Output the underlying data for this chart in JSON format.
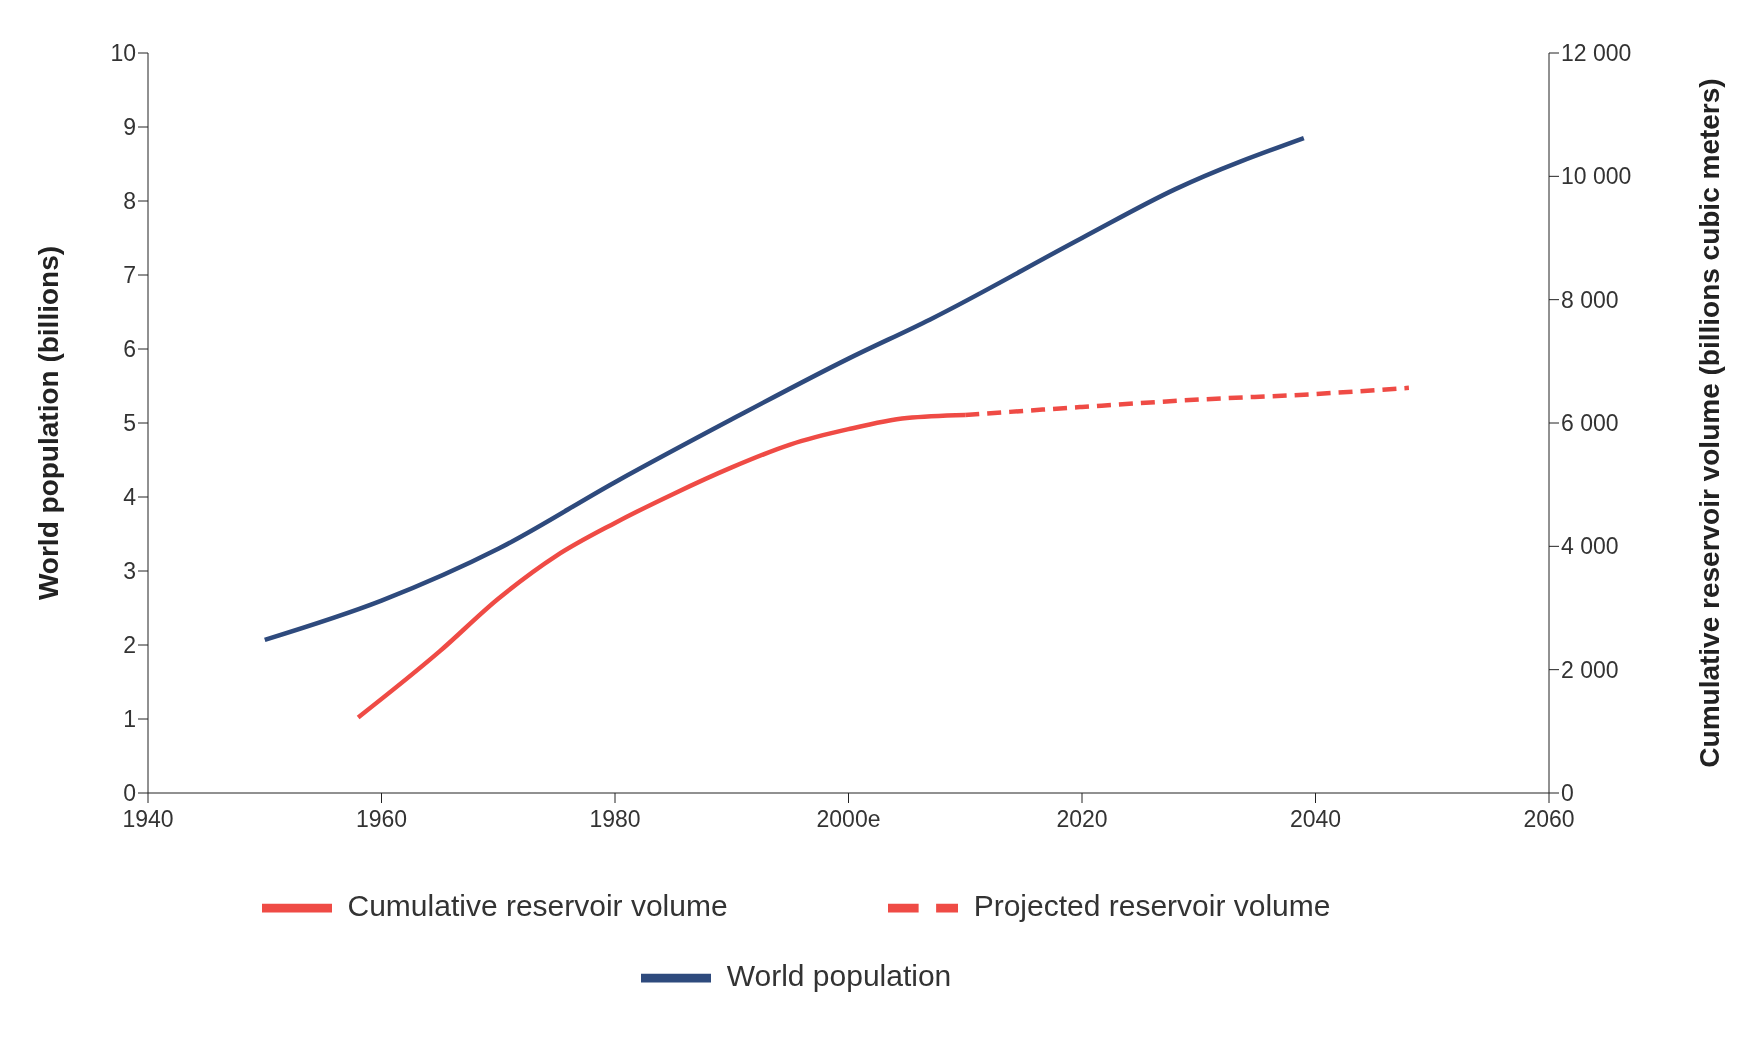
{
  "chart_data": {
    "type": "line",
    "ylabel": "World population (billions)",
    "y2label": "Cumulative reservoir volume (billions cubic meters)",
    "xlim": [
      1940,
      2060
    ],
    "xticks": [
      1940,
      1960,
      1980,
      {
        "value": 2000,
        "label": "2000e"
      },
      2020,
      2040,
      2060
    ],
    "ylim": [
      0,
      10
    ],
    "yticks": [
      0,
      1,
      2,
      3,
      4,
      5,
      6,
      7,
      8,
      9,
      10
    ],
    "y2lim": [
      0,
      12000
    ],
    "y2ticks": [
      0,
      {
        "value": 2000,
        "label": "2 000"
      },
      {
        "value": 4000,
        "label": "4 000"
      },
      {
        "value": 6000,
        "label": "6 000"
      },
      {
        "value": 8000,
        "label": "8 000"
      },
      {
        "value": 10000,
        "label": "10 000"
      },
      {
        "value": 12000,
        "label": "12 000"
      }
    ],
    "legend": "bottom",
    "grid": false,
    "series": [
      {
        "name": "World population",
        "color": "#2e4a7d",
        "line_style": "solid",
        "x": [
          1950,
          1960,
          1970,
          1980,
          1990,
          2000,
          2007,
          2020,
          2028,
          2039
        ],
        "values": [
          2.07,
          2.6,
          3.3,
          4.2,
          5.05,
          5.87,
          6.4,
          7.5,
          8.16,
          8.85
        ]
      },
      {
        "name": "Cumulative reservoir volume",
        "color": "#ef4b45",
        "axis": "y2",
        "line_style": "solid",
        "x": [
          1958,
          1965,
          1970,
          1975,
          1980,
          1985,
          1990,
          1995,
          2000,
          2005,
          2010
        ],
        "values": [
          1225,
          2300,
          3150,
          3850,
          4380,
          4850,
          5280,
          5650,
          5900,
          6080,
          6130
        ]
      },
      {
        "name": "Projected reservoir volume",
        "color": "#ef4b45",
        "axis": "y2",
        "line_style": "dashed",
        "x": [
          2010,
          2020,
          2030,
          2040,
          2048
        ],
        "values": [
          6130,
          6260,
          6380,
          6470,
          6570
        ]
      }
    ]
  }
}
